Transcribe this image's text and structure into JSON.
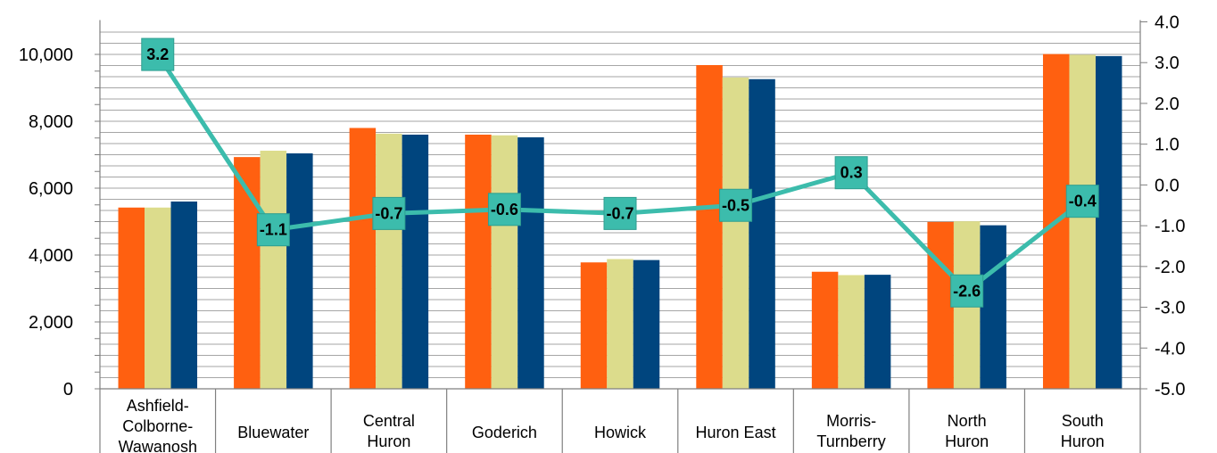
{
  "chart_data": {
    "type": "bar",
    "title": "",
    "xlabel": "",
    "ylabel": "",
    "categories": [
      [
        "Ashfield-",
        "Colborne-",
        "Wawanosh"
      ],
      [
        "Bluewater"
      ],
      [
        "Central",
        "Huron"
      ],
      [
        "Goderich"
      ],
      [
        "Howick"
      ],
      [
        "Huron East"
      ],
      [
        "Morris-",
        "Turnberry"
      ],
      [
        "North",
        "Huron"
      ],
      [
        "South",
        "Huron"
      ]
    ],
    "series": [
      {
        "type": "bar",
        "axis": "left",
        "color": "#ff6010",
        "values": [
          5420,
          6930,
          7800,
          7600,
          3780,
          9680,
          3500,
          4990,
          10010
        ]
      },
      {
        "type": "bar",
        "axis": "left",
        "color": "#dcdc8c",
        "values": [
          5420,
          7120,
          7630,
          7580,
          3880,
          9310,
          3400,
          5010,
          9990
        ]
      },
      {
        "type": "bar",
        "axis": "left",
        "color": "#00457e",
        "values": [
          5600,
          7040,
          7600,
          7520,
          3850,
          9260,
          3410,
          4890,
          9950
        ]
      },
      {
        "type": "line",
        "axis": "right",
        "color": "#3cbcac",
        "values": [
          3.2,
          -1.1,
          -0.7,
          -0.6,
          -0.7,
          -0.5,
          0.3,
          -2.6,
          -0.4
        ],
        "labels": [
          "3.2",
          "-1.1",
          "-0.7",
          "-0.6",
          "-0.7",
          "-0.5",
          "0.3",
          "-2.6",
          "-0.4"
        ]
      }
    ],
    "y_left": {
      "min": 0,
      "max": 10000,
      "ticks": [
        0,
        2000,
        4000,
        6000,
        8000,
        10000
      ],
      "tick_labels": [
        "0",
        "2,000",
        "4,000",
        "6,000",
        "8,000",
        "10,000"
      ]
    },
    "y_right": {
      "min": -5,
      "max": 4,
      "ticks": [
        -5,
        -4,
        -3,
        -2,
        -1,
        0,
        1,
        2,
        3,
        4
      ],
      "tick_labels": [
        "-5.0",
        "-4.0",
        "-3.0",
        "-2.0",
        "-1.0",
        "0.0",
        "1.0",
        "2.0",
        "3.0",
        "4.0"
      ]
    },
    "grid": true,
    "legend": "none",
    "colors": {
      "grid": "#a6a6a6",
      "axis": "#808080",
      "marker": "#3cbcac",
      "marker_edge": "#2e9e90"
    }
  }
}
